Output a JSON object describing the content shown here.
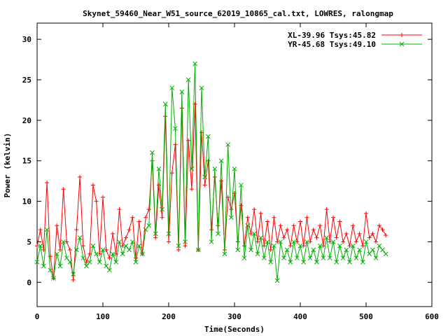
{
  "chart_data": {
    "type": "line",
    "title": "Skynet_59460_Near_W51_source_62019_10865_cal.txt, LOWRES, ralongmap",
    "xlabel": "Time(Seconds)",
    "ylabel": "Power (kelvin)",
    "xlim": [
      0,
      600
    ],
    "ylim": [
      -3,
      32
    ],
    "x_ticks": [
      0,
      100,
      200,
      300,
      400,
      500,
      600
    ],
    "y_ticks": [
      0,
      5,
      10,
      15,
      20,
      25,
      30
    ],
    "grid": false,
    "legend_position": "top-right",
    "series": [
      {
        "name": "XL-39.96 Tsys:45.82",
        "color": "#ff0000",
        "marker": "+",
        "x": [
          0,
          5,
          10,
          15,
          20,
          25,
          30,
          35,
          40,
          45,
          50,
          55,
          60,
          65,
          70,
          75,
          80,
          85,
          90,
          95,
          100,
          105,
          110,
          115,
          120,
          125,
          130,
          135,
          140,
          145,
          150,
          155,
          160,
          165,
          170,
          175,
          180,
          185,
          190,
          195,
          200,
          205,
          210,
          215,
          220,
          225,
          230,
          235,
          240,
          245,
          250,
          255,
          260,
          265,
          270,
          275,
          280,
          285,
          290,
          295,
          300,
          305,
          310,
          315,
          320,
          325,
          330,
          335,
          340,
          345,
          350,
          355,
          360,
          365,
          370,
          375,
          380,
          385,
          390,
          395,
          400,
          405,
          410,
          415,
          420,
          425,
          430,
          435,
          440,
          445,
          450,
          455,
          460,
          465,
          470,
          475,
          480,
          485,
          490,
          495,
          500,
          505,
          510,
          515,
          520,
          525,
          530
        ],
        "y": [
          4.5,
          6.5,
          4.0,
          12.3,
          3.2,
          0.5,
          7.0,
          4.0,
          11.5,
          5.0,
          4.0,
          0.3,
          6.5,
          13.0,
          4.5,
          2.5,
          3.5,
          12.0,
          10.0,
          3.5,
          10.5,
          4.0,
          3.0,
          6.0,
          3.5,
          9.0,
          4.5,
          5.5,
          6.5,
          8.0,
          3.0,
          7.5,
          3.5,
          8.0,
          9.0,
          15.0,
          5.5,
          12.0,
          8.0,
          20.5,
          5.0,
          13.5,
          17.0,
          4.0,
          21.5,
          4.5,
          17.5,
          11.5,
          22.0,
          4.0,
          18.5,
          12.0,
          15.0,
          6.5,
          13.0,
          7.0,
          12.5,
          4.0,
          10.5,
          9.0,
          11.0,
          5.0,
          9.5,
          4.5,
          8.0,
          6.0,
          9.0,
          5.0,
          8.5,
          4.5,
          7.5,
          4.0,
          8.0,
          5.0,
          7.0,
          5.5,
          6.5,
          4.5,
          7.0,
          5.0,
          7.5,
          4.5,
          8.0,
          5.0,
          6.5,
          5.5,
          7.0,
          4.5,
          9.0,
          5.0,
          8.0,
          5.5,
          7.5,
          5.0,
          6.0,
          4.5,
          7.0,
          5.0,
          6.0,
          4.5,
          8.5,
          5.5,
          6.0,
          5.0,
          7.0,
          6.5,
          5.8
        ]
      },
      {
        "name": "YR-45.68 Tsys:49.10",
        "color": "#00b000",
        "marker": "x",
        "x": [
          0,
          5,
          10,
          15,
          20,
          25,
          30,
          35,
          40,
          45,
          50,
          55,
          60,
          65,
          70,
          75,
          80,
          85,
          90,
          95,
          100,
          105,
          110,
          115,
          120,
          125,
          130,
          135,
          140,
          145,
          150,
          155,
          160,
          165,
          170,
          175,
          180,
          185,
          190,
          195,
          200,
          205,
          210,
          215,
          220,
          225,
          230,
          235,
          240,
          245,
          250,
          255,
          260,
          265,
          270,
          275,
          280,
          285,
          290,
          295,
          300,
          305,
          310,
          315,
          320,
          325,
          330,
          335,
          340,
          345,
          350,
          355,
          360,
          365,
          370,
          375,
          380,
          385,
          390,
          395,
          400,
          405,
          410,
          415,
          420,
          425,
          430,
          435,
          440,
          445,
          450,
          455,
          460,
          465,
          470,
          475,
          480,
          485,
          490,
          495,
          500,
          505,
          510,
          515,
          520,
          525,
          530
        ],
        "y": [
          2.5,
          4.5,
          2.0,
          6.5,
          1.5,
          0.5,
          3.5,
          2.0,
          5.0,
          3.0,
          2.5,
          1.0,
          4.0,
          5.5,
          3.0,
          2.0,
          2.5,
          4.5,
          3.5,
          2.5,
          4.0,
          2.0,
          1.5,
          3.5,
          2.5,
          5.0,
          3.5,
          4.5,
          4.0,
          5.0,
          2.5,
          4.5,
          3.5,
          6.5,
          7.0,
          16.0,
          6.0,
          14.0,
          9.0,
          22.0,
          6.0,
          24.0,
          19.0,
          4.5,
          23.5,
          5.0,
          25.0,
          14.0,
          27.0,
          4.0,
          24.0,
          13.0,
          18.0,
          5.0,
          14.0,
          6.0,
          15.0,
          3.5,
          17.0,
          8.0,
          14.0,
          4.0,
          12.0,
          3.0,
          7.0,
          4.0,
          6.0,
          3.5,
          5.5,
          3.0,
          5.0,
          2.5,
          4.5,
          0.2,
          5.0,
          3.0,
          4.0,
          2.5,
          5.0,
          3.0,
          4.5,
          2.5,
          5.0,
          3.0,
          4.0,
          2.5,
          4.5,
          3.0,
          5.5,
          3.0,
          5.0,
          2.5,
          4.5,
          3.0,
          4.0,
          2.5,
          4.5,
          3.0,
          4.0,
          2.5,
          5.0,
          3.5,
          4.0,
          3.0,
          4.5,
          4.0,
          3.5
        ]
      }
    ]
  }
}
